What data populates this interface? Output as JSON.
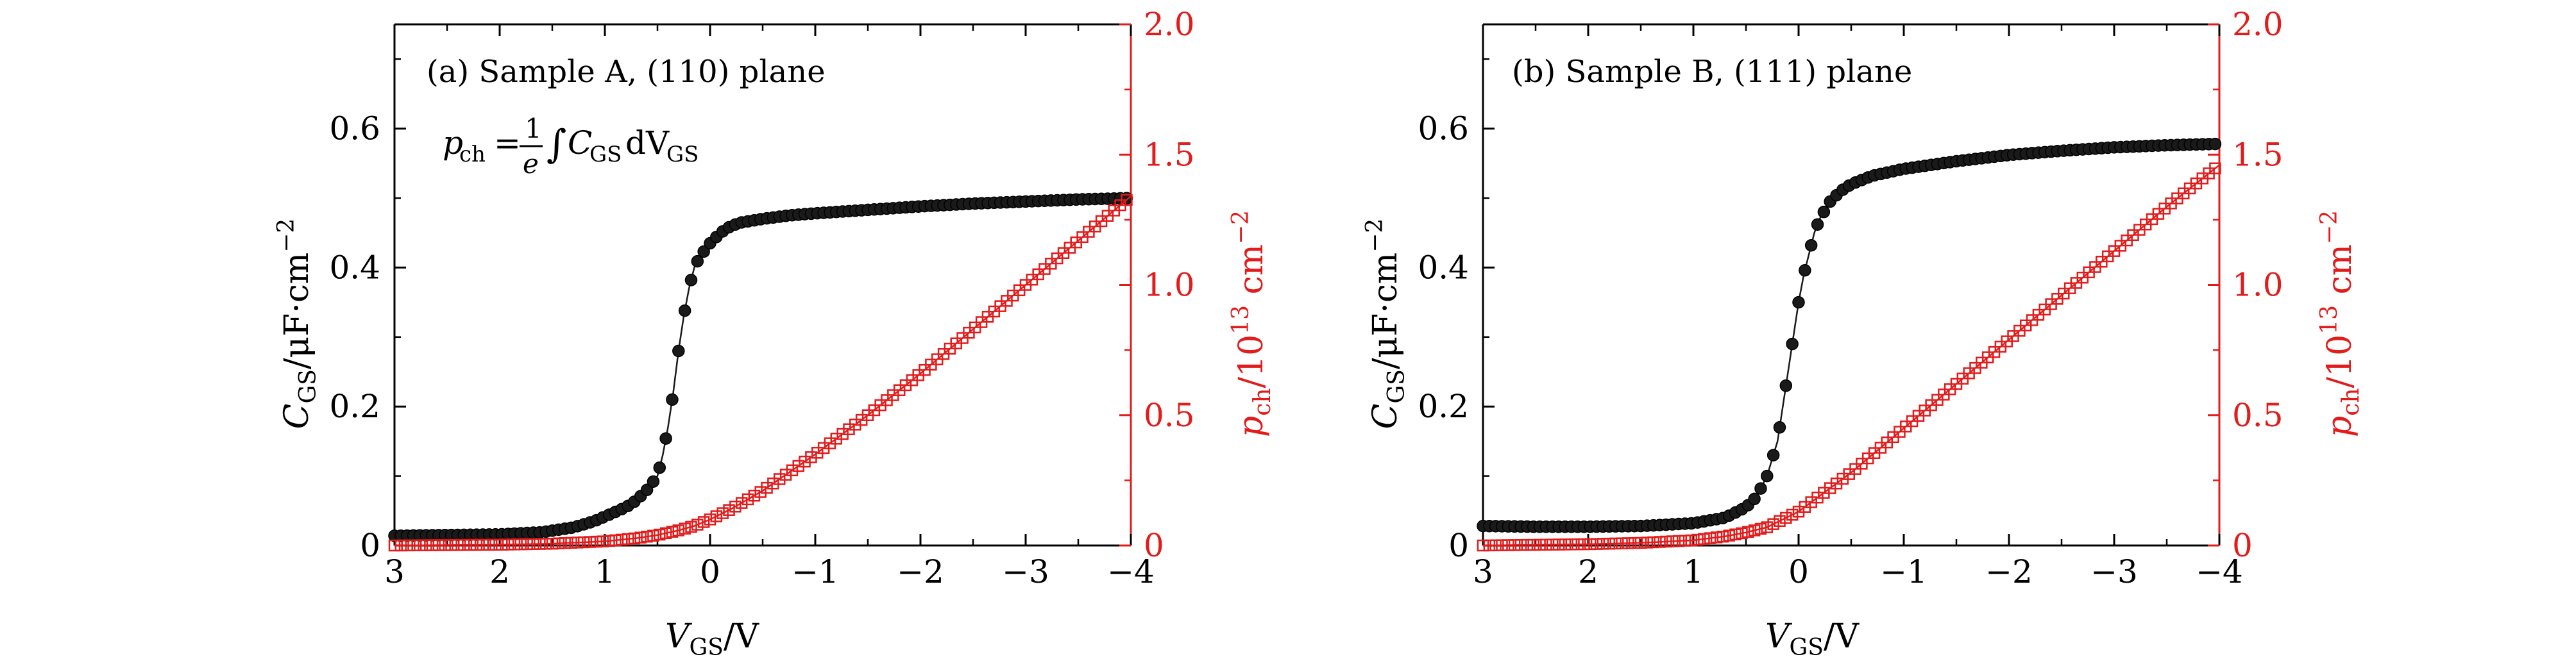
{
  "chart_data": [
    {
      "type": "scatter",
      "title": "",
      "annotation": "(a) Sample A, (110) plane",
      "formula": {
        "lhs": "p",
        "lhs_sub": "ch",
        "eq": "=",
        "num": "1",
        "den": "e",
        "integral": "∫",
        "c": "C",
        "c_sub": "GS",
        "d": "dV",
        "d_sub": "GS"
      },
      "xlabel": {
        "main": "V",
        "sub": "GS",
        "rest": "/V"
      },
      "ylabel_left": {
        "main": "C",
        "sub": "GS",
        "rest": "/μF·cm",
        "sup": "−2"
      },
      "ylabel_right": {
        "main": "p",
        "sub": "ch",
        "rest": "/10",
        "sup": "13",
        "tail": " cm",
        "sup2": "−2"
      },
      "xlim": [
        3,
        -4
      ],
      "ylim_left": [
        0,
        0.75
      ],
      "ylim_right": [
        0,
        2.0
      ],
      "x_ticks": [
        3,
        2,
        1,
        0,
        -1,
        -2,
        -3,
        -4
      ],
      "x_tick_labels": [
        "3",
        "2",
        "1",
        "0",
        "−1",
        "−2",
        "−3",
        "−4"
      ],
      "y_left_ticks": [
        0,
        0.2,
        0.4,
        0.6
      ],
      "y_left_tick_labels": [
        "0",
        "0.2",
        "0.4",
        "0.6"
      ],
      "y_right_ticks": [
        0,
        0.5,
        1.0,
        1.5,
        2.0
      ],
      "y_right_tick_labels": [
        "0",
        "0.5",
        "1.0",
        "1.5",
        "2.0"
      ],
      "series": [
        {
          "name": "C_GS",
          "axis": "left",
          "marker": "filled-circle",
          "color": "#1a1a1a",
          "line": true,
          "x": [
            3.0,
            2.5,
            2.0,
            1.6,
            1.3,
            1.1,
            0.95,
            0.8,
            0.7,
            0.6,
            0.5,
            0.45,
            0.4,
            0.35,
            0.3,
            0.25,
            0.2,
            0.15,
            0.1,
            0.05,
            0.0,
            -0.1,
            -0.2,
            -0.3,
            -0.5,
            -0.75,
            -1.0,
            -1.5,
            -2.0,
            -2.5,
            -3.0,
            -3.5,
            -4.0
          ],
          "y": [
            0.014,
            0.015,
            0.016,
            0.019,
            0.026,
            0.035,
            0.045,
            0.055,
            0.065,
            0.08,
            0.1,
            0.13,
            0.17,
            0.22,
            0.28,
            0.33,
            0.37,
            0.4,
            0.415,
            0.425,
            0.435,
            0.45,
            0.46,
            0.465,
            0.47,
            0.475,
            0.478,
            0.483,
            0.488,
            0.492,
            0.495,
            0.498,
            0.5
          ]
        },
        {
          "name": "p_ch",
          "axis": "right",
          "marker": "open-square",
          "color": "#e21b1b",
          "line": true,
          "x": [
            3.0,
            2.0,
            1.5,
            1.0,
            0.7,
            0.5,
            0.3,
            0.15,
            0.0,
            -0.2,
            -0.5,
            -1.0,
            -1.5,
            -2.0,
            -2.5,
            -3.0,
            -3.5,
            -4.0
          ],
          "y": [
            0.0,
            0.003,
            0.007,
            0.016,
            0.028,
            0.04,
            0.058,
            0.075,
            0.1,
            0.14,
            0.21,
            0.35,
            0.5,
            0.66,
            0.83,
            1.0,
            1.17,
            1.34
          ]
        }
      ]
    },
    {
      "type": "scatter",
      "title": "",
      "annotation": "(b) Sample B, (111) plane",
      "xlabel": {
        "main": "V",
        "sub": "GS",
        "rest": "/V"
      },
      "ylabel_left": {
        "main": "C",
        "sub": "GS",
        "rest": "/μF·cm",
        "sup": "−2"
      },
      "ylabel_right": {
        "main": "p",
        "sub": "ch",
        "rest": "/10",
        "sup": "13",
        "tail": " cm",
        "sup2": "−2"
      },
      "xlim": [
        3,
        -4
      ],
      "ylim_left": [
        0,
        0.75
      ],
      "ylim_right": [
        0,
        2.0
      ],
      "x_ticks": [
        3,
        2,
        1,
        0,
        -1,
        -2,
        -3,
        -4
      ],
      "x_tick_labels": [
        "3",
        "2",
        "1",
        "0",
        "−1",
        "−2",
        "−3",
        "−4"
      ],
      "y_left_ticks": [
        0,
        0.2,
        0.4,
        0.6
      ],
      "y_left_tick_labels": [
        "0",
        "0.2",
        "0.4",
        "0.6"
      ],
      "y_right_ticks": [
        0,
        0.5,
        1.0,
        1.5,
        2.0
      ],
      "y_right_tick_labels": [
        "0",
        "0.5",
        "1.0",
        "1.5",
        "2.0"
      ],
      "series": [
        {
          "name": "C_GS",
          "axis": "left",
          "marker": "filled-circle",
          "color": "#1a1a1a",
          "line": true,
          "x": [
            3.0,
            2.5,
            2.0,
            1.5,
            1.0,
            0.7,
            0.5,
            0.4,
            0.3,
            0.2,
            0.15,
            0.1,
            0.05,
            0.0,
            -0.05,
            -0.1,
            -0.15,
            -0.2,
            -0.3,
            -0.4,
            -0.5,
            -0.7,
            -1.0,
            -1.5,
            -2.0,
            -2.5,
            -3.0,
            -3.5,
            -4.0
          ],
          "y": [
            0.028,
            0.027,
            0.027,
            0.028,
            0.032,
            0.04,
            0.055,
            0.07,
            0.1,
            0.15,
            0.2,
            0.25,
            0.3,
            0.35,
            0.39,
            0.42,
            0.45,
            0.47,
            0.495,
            0.51,
            0.52,
            0.532,
            0.542,
            0.553,
            0.562,
            0.568,
            0.573,
            0.576,
            0.578
          ]
        },
        {
          "name": "p_ch",
          "axis": "right",
          "marker": "open-square",
          "color": "#e21b1b",
          "line": true,
          "x": [
            3.0,
            2.0,
            1.5,
            1.0,
            0.7,
            0.5,
            0.3,
            0.15,
            0.0,
            -0.2,
            -0.5,
            -1.0,
            -1.5,
            -2.0,
            -2.5,
            -3.0,
            -3.5,
            -4.0
          ],
          "y": [
            0.0,
            0.005,
            0.01,
            0.02,
            0.035,
            0.05,
            0.07,
            0.1,
            0.13,
            0.19,
            0.28,
            0.45,
            0.62,
            0.79,
            0.96,
            1.13,
            1.3,
            1.46
          ]
        }
      ]
    }
  ]
}
